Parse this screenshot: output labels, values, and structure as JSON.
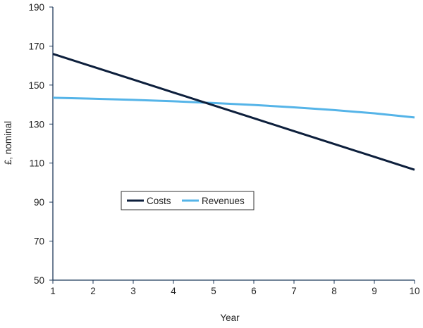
{
  "chart_data": {
    "type": "line",
    "title": "",
    "xlabel": "Year",
    "ylabel": "£, nominal",
    "x": [
      1,
      2,
      3,
      4,
      5,
      6,
      7,
      8,
      9,
      10
    ],
    "xlim": [
      1,
      10
    ],
    "ylim": [
      50,
      190
    ],
    "yticks": [
      50,
      70,
      90,
      110,
      130,
      150,
      170,
      190
    ],
    "xticks": [
      1,
      2,
      3,
      4,
      5,
      6,
      7,
      8,
      9,
      10
    ],
    "grid": false,
    "legend_position": "center-left",
    "series": [
      {
        "name": "Costs",
        "color": "#0d1f3c",
        "values": [
          166,
          159.4,
          152.8,
          146.2,
          139.6,
          133,
          126.4,
          119.8,
          113.2,
          106.6
        ]
      },
      {
        "name": "Revenues",
        "color": "#55b4e8",
        "values": [
          143.5,
          143.0,
          142.4,
          141.7,
          140.8,
          139.8,
          138.6,
          137.2,
          135.5,
          133.4
        ]
      }
    ]
  }
}
